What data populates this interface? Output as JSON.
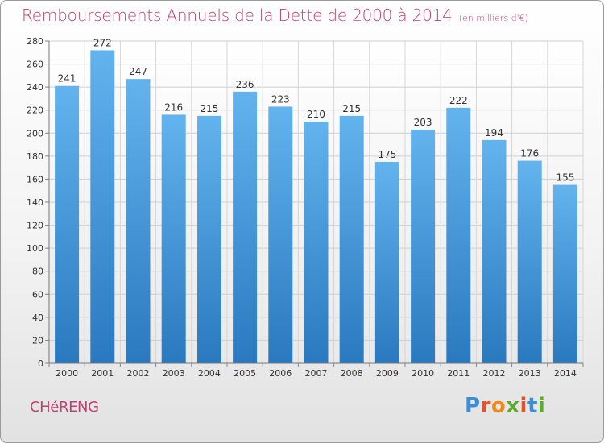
{
  "header": {
    "title": "Remboursements Annuels de la Dette de 2000 à 2014",
    "unit": "(en milliers d'€)"
  },
  "footer": {
    "commune": "CHéRENG",
    "brand": "Proxiti"
  },
  "colors": {
    "title": "#c0406e",
    "bar_top": "#63b3ee",
    "bar_bottom": "#2a79bf",
    "brand_letters": [
      "#3a8fd6",
      "#e8522a",
      "#f08a1d",
      "#5cab2e",
      "#e8522a",
      "#3a8fd6",
      "#5cab2e"
    ]
  },
  "chart_data": {
    "type": "bar",
    "title": "Remboursements Annuels de la Dette de 2000 à 2014",
    "subtitle": "(en milliers d'€)",
    "xlabel": "",
    "ylabel": "",
    "categories": [
      "2000",
      "2001",
      "2002",
      "2003",
      "2004",
      "2005",
      "2006",
      "2007",
      "2008",
      "2009",
      "2010",
      "2011",
      "2012",
      "2013",
      "2014"
    ],
    "values": [
      241,
      272,
      247,
      216,
      215,
      236,
      223,
      210,
      215,
      175,
      203,
      222,
      194,
      176,
      155
    ],
    "ylim": [
      0,
      280
    ],
    "yticks": [
      0,
      20,
      40,
      60,
      80,
      100,
      120,
      140,
      160,
      180,
      200,
      220,
      240,
      260,
      280
    ],
    "grid": true,
    "legend": "none"
  }
}
